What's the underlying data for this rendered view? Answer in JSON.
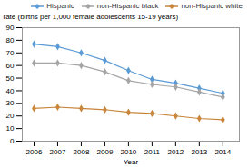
{
  "chart_data": {
    "type": "line",
    "x": [
      2006,
      2007,
      2008,
      2009,
      2010,
      2011,
      2012,
      2013,
      2014
    ],
    "series": [
      {
        "name": "Hispanic",
        "color": "#5B9BD5",
        "values": [
          77,
          75,
          70,
          64,
          56,
          49,
          46,
          42,
          38
        ]
      },
      {
        "name": "non-Hispanic black",
        "color": "#A5A5A5",
        "values": [
          62,
          62,
          60,
          55,
          48,
          45,
          43,
          39,
          35
        ]
      },
      {
        "name": "non-Hispanic white",
        "color": "#C9853A",
        "values": [
          26,
          27,
          26,
          25,
          23,
          22,
          20,
          18,
          17
        ]
      }
    ],
    "xlabel": "Year",
    "ylabel": "rate (births per 1,000 female adolescents 15-19 years)",
    "xlim": [
      2005.5,
      2014.7
    ],
    "xticks": [
      2006,
      2007,
      2008,
      2009,
      2010,
      2011,
      2012,
      2013,
      2014
    ],
    "ylim": [
      0,
      90
    ],
    "yticks": [
      0,
      10,
      20,
      30,
      40,
      50,
      60,
      70,
      80,
      90
    ],
    "marker": "diamond",
    "legend": "upper right",
    "grid": false
  }
}
